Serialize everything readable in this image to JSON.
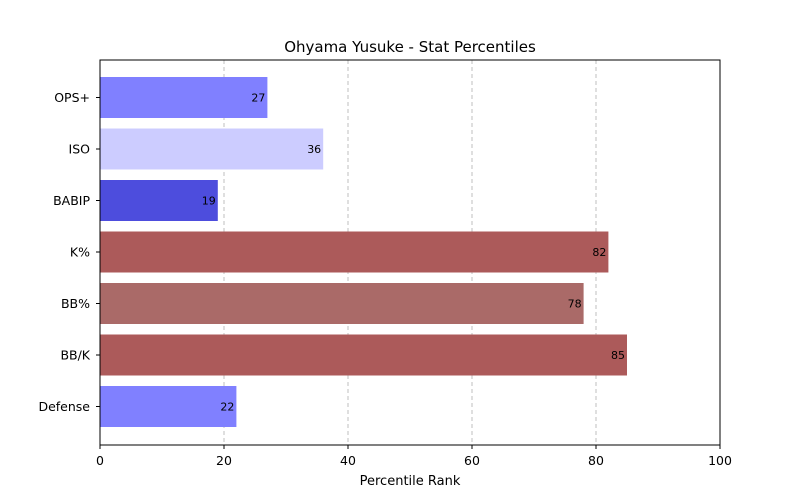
{
  "chart_data": {
    "type": "bar",
    "orientation": "horizontal",
    "title": "Ohyama Yusuke - Stat Percentiles",
    "xlabel": "Percentile Rank",
    "ylabel": "",
    "xlim": [
      0,
      100
    ],
    "xticks": [
      "0",
      "20",
      "40",
      "60",
      "80",
      "100"
    ],
    "grid": "vertical dashed",
    "categories": [
      "OPS+",
      "ISO",
      "BABIP",
      "K%",
      "BB%",
      "BB/K",
      "Defense"
    ],
    "values": [
      27,
      36,
      19,
      82,
      78,
      85,
      22
    ],
    "colors": [
      "#8080ff",
      "#ccccff",
      "#4d4ddd",
      "#ac5a5a",
      "#aa6a68",
      "#ac5a5a",
      "#8080ff"
    ]
  }
}
